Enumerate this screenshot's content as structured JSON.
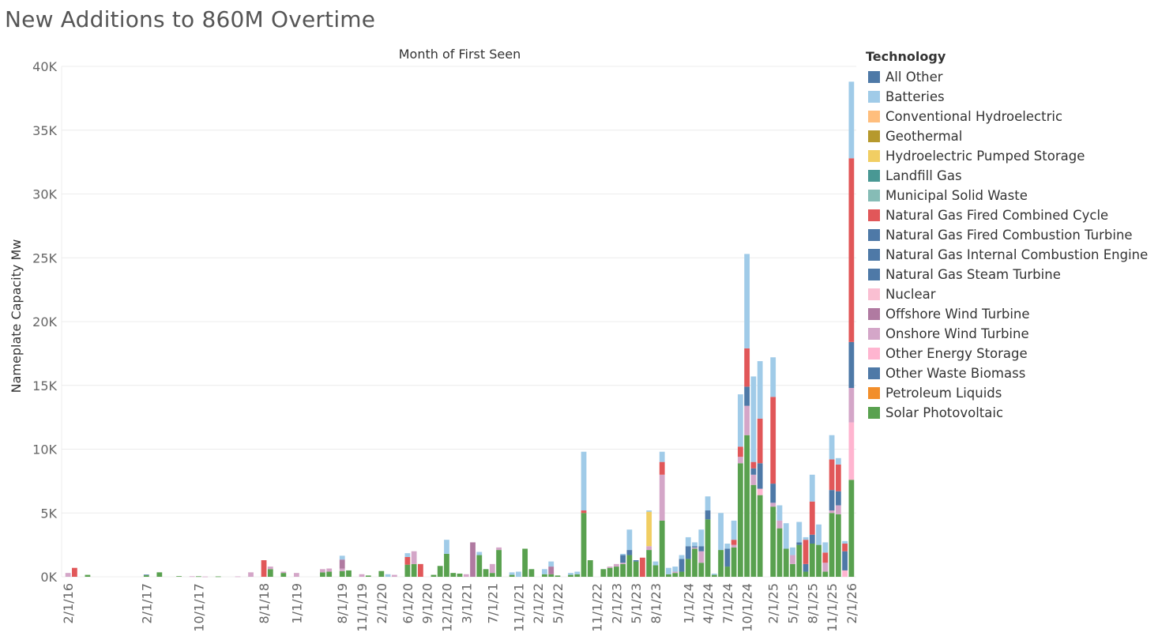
{
  "title": "New Additions to 860M Overtime",
  "legend": {
    "title": "Technology"
  },
  "chart_data": {
    "type": "bar",
    "stacked": true,
    "title": "New Additions to 860M Overtime",
    "top_axis_title": "Month of First Seen",
    "ylabel": "Nameplate Capacity Mw",
    "ylim": [
      0,
      40000
    ],
    "yticks": [
      0,
      5000,
      10000,
      15000,
      20000,
      25000,
      30000,
      35000,
      40000
    ],
    "ytick_labels": [
      "0K",
      "5K",
      "10K",
      "15K",
      "20K",
      "25K",
      "30K",
      "35K",
      "40K"
    ],
    "grid": true,
    "legend_position": "right",
    "x_tick_labels": [
      "2/1/16",
      "2/1/17",
      "10/1/17",
      "8/1/18",
      "1/1/19",
      "8/1/19",
      "11/1/19",
      "2/1/20",
      "6/1/20",
      "9/1/20",
      "12/1/20",
      "3/1/21",
      "7/1/21",
      "11/1/21",
      "2/1/22",
      "5/1/22",
      "11/1/22",
      "2/1/23",
      "5/1/23",
      "8/1/23",
      "1/1/24",
      "4/1/24",
      "7/1/24",
      "10/1/24",
      "2/1/25",
      "5/1/25",
      "8/1/25",
      "11/1/25",
      "2/1/26"
    ],
    "series": [
      {
        "name": "All Other",
        "color": "#4e79a7"
      },
      {
        "name": "Batteries",
        "color": "#a0cbe8"
      },
      {
        "name": "Conventional Hydroelectric",
        "color": "#ffbe7d"
      },
      {
        "name": "Geothermal",
        "color": "#b6992d"
      },
      {
        "name": "Hydroelectric Pumped Storage",
        "color": "#f1ce63"
      },
      {
        "name": "Landfill Gas",
        "color": "#499894"
      },
      {
        "name": "Municipal Solid Waste",
        "color": "#86bcb6"
      },
      {
        "name": "Natural Gas Fired Combined Cycle",
        "color": "#e15759"
      },
      {
        "name": "Natural Gas Fired Combustion Turbine",
        "color": "#4e79a7"
      },
      {
        "name": "Natural Gas Internal Combustion Engine",
        "color": "#4e79a7"
      },
      {
        "name": "Natural Gas Steam Turbine",
        "color": "#4e79a7"
      },
      {
        "name": "Nuclear",
        "color": "#fabfd2"
      },
      {
        "name": "Offshore Wind Turbine",
        "color": "#b07aa1"
      },
      {
        "name": "Onshore Wind Turbine",
        "color": "#d4a6c8"
      },
      {
        "name": "Other Energy Storage",
        "color": "#ffb5d0"
      },
      {
        "name": "Other Waste Biomass",
        "color": "#4e79a7"
      },
      {
        "name": "Petroleum Liquids",
        "color": "#f28e2b"
      },
      {
        "name": "Solar Photovoltaic",
        "color": "#59a14f"
      }
    ],
    "bars": [
      {
        "x": "2/1/16",
        "values": {
          "Onshore Wind Turbine": 300
        }
      },
      {
        "x": "3/1/16",
        "values": {
          "Natural Gas Fired Combined Cycle": 700
        }
      },
      {
        "x": "5/1/16",
        "values": {
          "Solar Photovoltaic": 150
        }
      },
      {
        "x": "2/1/17",
        "values": {
          "Solar Photovoltaic": 120,
          "Natural Gas Fired Combustion Turbine": 50
        }
      },
      {
        "x": "4/1/17",
        "values": {
          "Solar Photovoltaic": 350
        }
      },
      {
        "x": "7/1/17",
        "values": {
          "Solar Photovoltaic": 50
        }
      },
      {
        "x": "9/1/17",
        "values": {
          "Onshore Wind Turbine": 40
        }
      },
      {
        "x": "10/1/17",
        "values": {
          "Solar Photovoltaic": 40
        }
      },
      {
        "x": "11/1/17",
        "values": {
          "Onshore Wind Turbine": 20
        }
      },
      {
        "x": "1/1/18",
        "values": {
          "Solar Photovoltaic": 30
        }
      },
      {
        "x": "4/1/18",
        "values": {
          "Onshore Wind Turbine": 30
        }
      },
      {
        "x": "6/1/18",
        "values": {
          "Onshore Wind Turbine": 350
        }
      },
      {
        "x": "8/1/18",
        "values": {
          "Natural Gas Fired Combined Cycle": 1300
        }
      },
      {
        "x": "9/1/18",
        "values": {
          "Solar Photovoltaic": 600,
          "Onshore Wind Turbine": 200
        }
      },
      {
        "x": "11/1/18",
        "values": {
          "Solar Photovoltaic": 300,
          "Onshore Wind Turbine": 100
        }
      },
      {
        "x": "1/1/19",
        "values": {
          "Onshore Wind Turbine": 300
        }
      },
      {
        "x": "5/1/19",
        "values": {
          "Solar Photovoltaic": 350,
          "Onshore Wind Turbine": 250
        }
      },
      {
        "x": "6/1/19",
        "values": {
          "Solar Photovoltaic": 400,
          "Onshore Wind Turbine": 250
        }
      },
      {
        "x": "8/1/19",
        "values": {
          "Solar Photovoltaic": 450,
          "Offshore Wind Turbine": 700,
          "Onshore Wind Turbine": 200,
          "Batteries": 300
        }
      },
      {
        "x": "9/1/19",
        "values": {
          "Solar Photovoltaic": 500
        }
      },
      {
        "x": "11/1/19",
        "values": {
          "Onshore Wind Turbine": 200
        }
      },
      {
        "x": "12/1/19",
        "values": {
          "Solar Photovoltaic": 100
        }
      },
      {
        "x": "2/1/20",
        "values": {
          "Solar Photovoltaic": 450
        }
      },
      {
        "x": "3/1/20",
        "values": {
          "Batteries": 200
        }
      },
      {
        "x": "4/1/20",
        "values": {
          "Onshore Wind Turbine": 150
        }
      },
      {
        "x": "6/1/20",
        "values": {
          "Solar Photovoltaic": 950,
          "Natural Gas Fired Combined Cycle": 600,
          "Batteries": 300
        }
      },
      {
        "x": "7/1/20",
        "values": {
          "Solar Photovoltaic": 1000,
          "Onshore Wind Turbine": 1000
        }
      },
      {
        "x": "8/1/20",
        "values": {
          "Natural Gas Fired Combined Cycle": 1000
        }
      },
      {
        "x": "10/1/20",
        "values": {
          "Solar Photovoltaic": 150
        }
      },
      {
        "x": "11/1/20",
        "values": {
          "Solar Photovoltaic": 850
        }
      },
      {
        "x": "12/1/20",
        "values": {
          "Solar Photovoltaic": 1800,
          "Batteries": 1100
        }
      },
      {
        "x": "1/1/21",
        "values": {
          "Solar Photovoltaic": 300
        }
      },
      {
        "x": "2/1/21",
        "values": {
          "Solar Photovoltaic": 250
        }
      },
      {
        "x": "3/1/21",
        "values": {
          "Onshore Wind Turbine": 200
        }
      },
      {
        "x": "4/1/21",
        "values": {
          "Offshore Wind Turbine": 2700
        }
      },
      {
        "x": "5/1/21",
        "values": {
          "Solar Photovoltaic": 1700,
          "Batteries": 250
        }
      },
      {
        "x": "6/1/21",
        "values": {
          "Solar Photovoltaic": 600
        }
      },
      {
        "x": "7/1/21",
        "values": {
          "Solar Photovoltaic": 300,
          "Onshore Wind Turbine": 700
        }
      },
      {
        "x": "8/1/21",
        "values": {
          "Solar Photovoltaic": 2100,
          "Onshore Wind Turbine": 200
        }
      },
      {
        "x": "10/1/21",
        "values": {
          "Solar Photovoltaic": 150,
          "Batteries": 200
        }
      },
      {
        "x": "11/1/21",
        "values": {
          "Batteries": 400
        }
      },
      {
        "x": "12/1/21",
        "values": {
          "Solar Photovoltaic": 2200
        }
      },
      {
        "x": "1/1/22",
        "values": {
          "Solar Photovoltaic": 600
        }
      },
      {
        "x": "3/1/22",
        "values": {
          "Solar Photovoltaic": 200,
          "Batteries": 400
        }
      },
      {
        "x": "4/1/22",
        "values": {
          "Solar Photovoltaic": 200,
          "Offshore Wind Turbine": 600,
          "Batteries": 400
        }
      },
      {
        "x": "5/1/22",
        "values": {
          "Solar Photovoltaic": 100
        }
      },
      {
        "x": "7/1/22",
        "values": {
          "Solar Photovoltaic": 150,
          "Batteries": 150
        }
      },
      {
        "x": "8/1/22",
        "values": {
          "Solar Photovoltaic": 200,
          "Batteries": 200
        }
      },
      {
        "x": "9/1/22",
        "values": {
          "Solar Photovoltaic": 5000,
          "Natural Gas Fired Combined Cycle": 200,
          "Batteries": 4600
        }
      },
      {
        "x": "10/1/22",
        "values": {
          "Solar Photovoltaic": 1300
        }
      },
      {
        "x": "12/1/22",
        "values": {
          "Solar Photovoltaic": 600
        }
      },
      {
        "x": "1/1/23",
        "values": {
          "Solar Photovoltaic": 700,
          "Onshore Wind Turbine": 100
        }
      },
      {
        "x": "2/1/23",
        "values": {
          "Solar Photovoltaic": 800,
          "Onshore Wind Turbine": 200
        }
      },
      {
        "x": "3/1/23",
        "values": {
          "Solar Photovoltaic": 1000,
          "Onshore Wind Turbine": 100,
          "Natural Gas Fired Combustion Turbine": 600,
          "Batteries": 100
        }
      },
      {
        "x": "4/1/23",
        "values": {
          "Solar Photovoltaic": 1700,
          "Natural Gas Fired Combustion Turbine": 400,
          "Batteries": 1600
        }
      },
      {
        "x": "5/1/23",
        "values": {
          "Solar Photovoltaic": 1200,
          "Natural Gas Fired Combustion Turbine": 100
        }
      },
      {
        "x": "6/1/23",
        "values": {
          "Natural Gas Fired Combined Cycle": 1500
        }
      },
      {
        "x": "7/1/23",
        "values": {
          "Solar Photovoltaic": 2100,
          "Onshore Wind Turbine": 300,
          "Hydroelectric Pumped Storage": 2700,
          "Batteries": 100
        }
      },
      {
        "x": "8/1/23",
        "values": {
          "Solar Photovoltaic": 900,
          "Batteries": 300
        }
      },
      {
        "x": "9/1/23",
        "values": {
          "Solar Photovoltaic": 4400,
          "Onshore Wind Turbine": 3600,
          "Natural Gas Fired Combined Cycle": 1000,
          "Batteries": 800
        }
      },
      {
        "x": "10/1/23",
        "values": {
          "Solar Photovoltaic": 200,
          "Batteries": 500
        }
      },
      {
        "x": "11/1/23",
        "values": {
          "Solar Photovoltaic": 300,
          "Onshore Wind Turbine": 100,
          "Batteries": 400
        }
      },
      {
        "x": "12/1/23",
        "values": {
          "Solar Photovoltaic": 400,
          "Natural Gas Fired Combustion Turbine": 1000,
          "Batteries": 300
        }
      },
      {
        "x": "1/1/24",
        "values": {
          "Solar Photovoltaic": 1400,
          "Natural Gas Fired Combustion Turbine": 1000,
          "Batteries": 700
        }
      },
      {
        "x": "2/1/24",
        "values": {
          "Solar Photovoltaic": 2200,
          "Onshore Wind Turbine": 100,
          "Natural Gas Fired Combustion Turbine": 100,
          "Batteries": 300
        }
      },
      {
        "x": "3/1/24",
        "values": {
          "Solar Photovoltaic": 1100,
          "Onshore Wind Turbine": 900,
          "Natural Gas Fired Combustion Turbine": 400,
          "Batteries": 1300
        }
      },
      {
        "x": "4/1/24",
        "values": {
          "Solar Photovoltaic": 4500,
          "Natural Gas Fired Combustion Turbine": 700,
          "Batteries": 1100
        }
      },
      {
        "x": "5/1/24",
        "values": {
          "Solar Photovoltaic": 150,
          "Batteries": 100
        }
      },
      {
        "x": "6/1/24",
        "values": {
          "Solar Photovoltaic": 2100,
          "Batteries": 2900
        }
      },
      {
        "x": "7/1/24",
        "values": {
          "Solar Photovoltaic": 800,
          "Natural Gas Fired Combustion Turbine": 1400,
          "Batteries": 400
        }
      },
      {
        "x": "8/1/24",
        "values": {
          "Solar Photovoltaic": 2300,
          "Onshore Wind Turbine": 200,
          "Natural Gas Fired Combined Cycle": 400,
          "Batteries": 1500
        }
      },
      {
        "x": "9/1/24",
        "values": {
          "Solar Photovoltaic": 8900,
          "Onshore Wind Turbine": 500,
          "Natural Gas Fired Combined Cycle": 800,
          "Batteries": 4100
        }
      },
      {
        "x": "10/1/24",
        "values": {
          "Solar Photovoltaic": 11100,
          "Onshore Wind Turbine": 2300,
          "Natural Gas Fired Combustion Turbine": 1500,
          "Natural Gas Fired Combined Cycle": 3000,
          "Batteries": 7400
        }
      },
      {
        "x": "11/1/24",
        "values": {
          "Solar Photovoltaic": 7200,
          "Onshore Wind Turbine": 800,
          "Natural Gas Fired Combustion Turbine": 500,
          "Natural Gas Fired Combined Cycle": 500,
          "Batteries": 6700
        }
      },
      {
        "x": "12/1/24",
        "values": {
          "Solar Photovoltaic": 6400,
          "Other Energy Storage": 500,
          "Natural Gas Fired Combustion Turbine": 2000,
          "Natural Gas Fired Combined Cycle": 3500,
          "Batteries": 4500
        }
      },
      {
        "x": "2/1/25",
        "values": {
          "Solar Photovoltaic": 5500,
          "Onshore Wind Turbine": 300,
          "Natural Gas Fired Combustion Turbine": 1500,
          "Natural Gas Fired Combined Cycle": 6800,
          "Batteries": 3100
        }
      },
      {
        "x": "3/1/25",
        "values": {
          "Solar Photovoltaic": 3800,
          "Onshore Wind Turbine": 600,
          "Batteries": 1200
        }
      },
      {
        "x": "4/1/25",
        "values": {
          "Solar Photovoltaic": 2200,
          "Batteries": 2000
        }
      },
      {
        "x": "5/1/25",
        "values": {
          "Solar Photovoltaic": 1000,
          "Onshore Wind Turbine": 700,
          "Batteries": 600
        }
      },
      {
        "x": "6/1/25",
        "values": {
          "Solar Photovoltaic": 2500,
          "Natural Gas Fired Combustion Turbine": 200,
          "Batteries": 1600
        }
      },
      {
        "x": "7/1/25",
        "values": {
          "Solar Photovoltaic": 400,
          "Natural Gas Fired Combustion Turbine": 600,
          "Natural Gas Fired Combined Cycle": 1900,
          "Batteries": 200
        }
      },
      {
        "x": "8/1/25",
        "values": {
          "Solar Photovoltaic": 2600,
          "Natural Gas Fired Combustion Turbine": 700,
          "Natural Gas Fired Combined Cycle": 2600,
          "Batteries": 2100
        }
      },
      {
        "x": "9/1/25",
        "values": {
          "Solar Photovoltaic": 2500,
          "Batteries": 1600
        }
      },
      {
        "x": "10/1/25",
        "values": {
          "Solar Photovoltaic": 400,
          "Onshore Wind Turbine": 700,
          "Natural Gas Fired Combined Cycle": 800,
          "Batteries": 800
        }
      },
      {
        "x": "11/1/25",
        "values": {
          "Solar Photovoltaic": 5000,
          "Onshore Wind Turbine": 200,
          "Natural Gas Fired Combustion Turbine": 1600,
          "Natural Gas Fired Combined Cycle": 2400,
          "Batteries": 1900
        }
      },
      {
        "x": "12/1/25",
        "values": {
          "Solar Photovoltaic": 4900,
          "Onshore Wind Turbine": 700,
          "Natural Gas Fired Combustion Turbine": 1100,
          "Natural Gas Fired Combined Cycle": 2100,
          "Batteries": 500
        }
      },
      {
        "x": "1/1/26",
        "values": {
          "Other Energy Storage": 500,
          "Natural Gas Fired Combustion Turbine": 1500,
          "Natural Gas Fired Combined Cycle": 600,
          "Batteries": 200
        }
      },
      {
        "x": "2/1/26",
        "values": {
          "Solar Photovoltaic": 7600,
          "Onshore Wind Turbine": 2700,
          "Other Energy Storage": 4500,
          "Natural Gas Fired Combustion Turbine": 3600,
          "Natural Gas Fired Combined Cycle": 14400,
          "Batteries": 6000
        }
      }
    ]
  }
}
